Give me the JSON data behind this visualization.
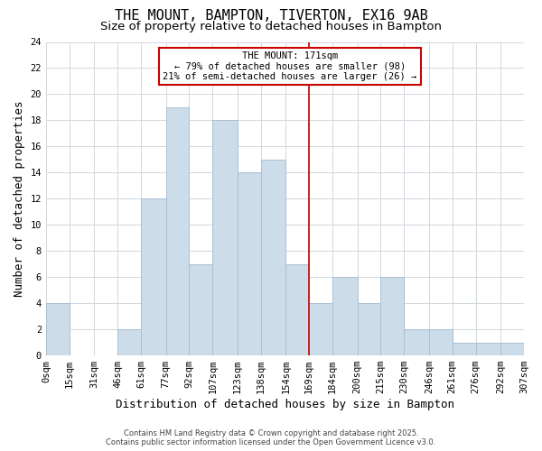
{
  "title": "THE MOUNT, BAMPTON, TIVERTON, EX16 9AB",
  "subtitle": "Size of property relative to detached houses in Bampton",
  "xlabel": "Distribution of detached houses by size in Bampton",
  "ylabel": "Number of detached properties",
  "bar_values": [
    4,
    0,
    0,
    2,
    12,
    19,
    7,
    18,
    14,
    15,
    7,
    4,
    6,
    4,
    6,
    2,
    2,
    1,
    1,
    1
  ],
  "bin_edges": [
    0,
    15,
    31,
    46,
    61,
    77,
    92,
    107,
    123,
    138,
    154,
    169,
    184,
    200,
    215,
    230,
    246,
    261,
    276,
    292,
    307
  ],
  "xtick_labels": [
    "0sqm",
    "15sqm",
    "31sqm",
    "46sqm",
    "61sqm",
    "77sqm",
    "92sqm",
    "107sqm",
    "123sqm",
    "138sqm",
    "154sqm",
    "169sqm",
    "184sqm",
    "200sqm",
    "215sqm",
    "230sqm",
    "246sqm",
    "261sqm",
    "276sqm",
    "292sqm",
    "307sqm"
  ],
  "bar_color": "#ccdce8",
  "bar_edgecolor": "#aac0d4",
  "vline_x": 169,
  "vline_color": "#cc0000",
  "ylim": [
    0,
    24
  ],
  "yticks": [
    0,
    2,
    4,
    6,
    8,
    10,
    12,
    14,
    16,
    18,
    20,
    22,
    24
  ],
  "grid_color": "#d0d8e0",
  "bg_color": "#ffffff",
  "annotation_title": "THE MOUNT: 171sqm",
  "annotation_line1": "← 79% of detached houses are smaller (98)",
  "annotation_line2": "21% of semi-detached houses are larger (26) →",
  "footer1": "Contains HM Land Registry data © Crown copyright and database right 2025.",
  "footer2": "Contains public sector information licensed under the Open Government Licence v3.0.",
  "title_fontsize": 11,
  "subtitle_fontsize": 9.5,
  "label_fontsize": 9,
  "tick_fontsize": 7.5,
  "annotation_fontsize": 7.5,
  "footer_fontsize": 6
}
